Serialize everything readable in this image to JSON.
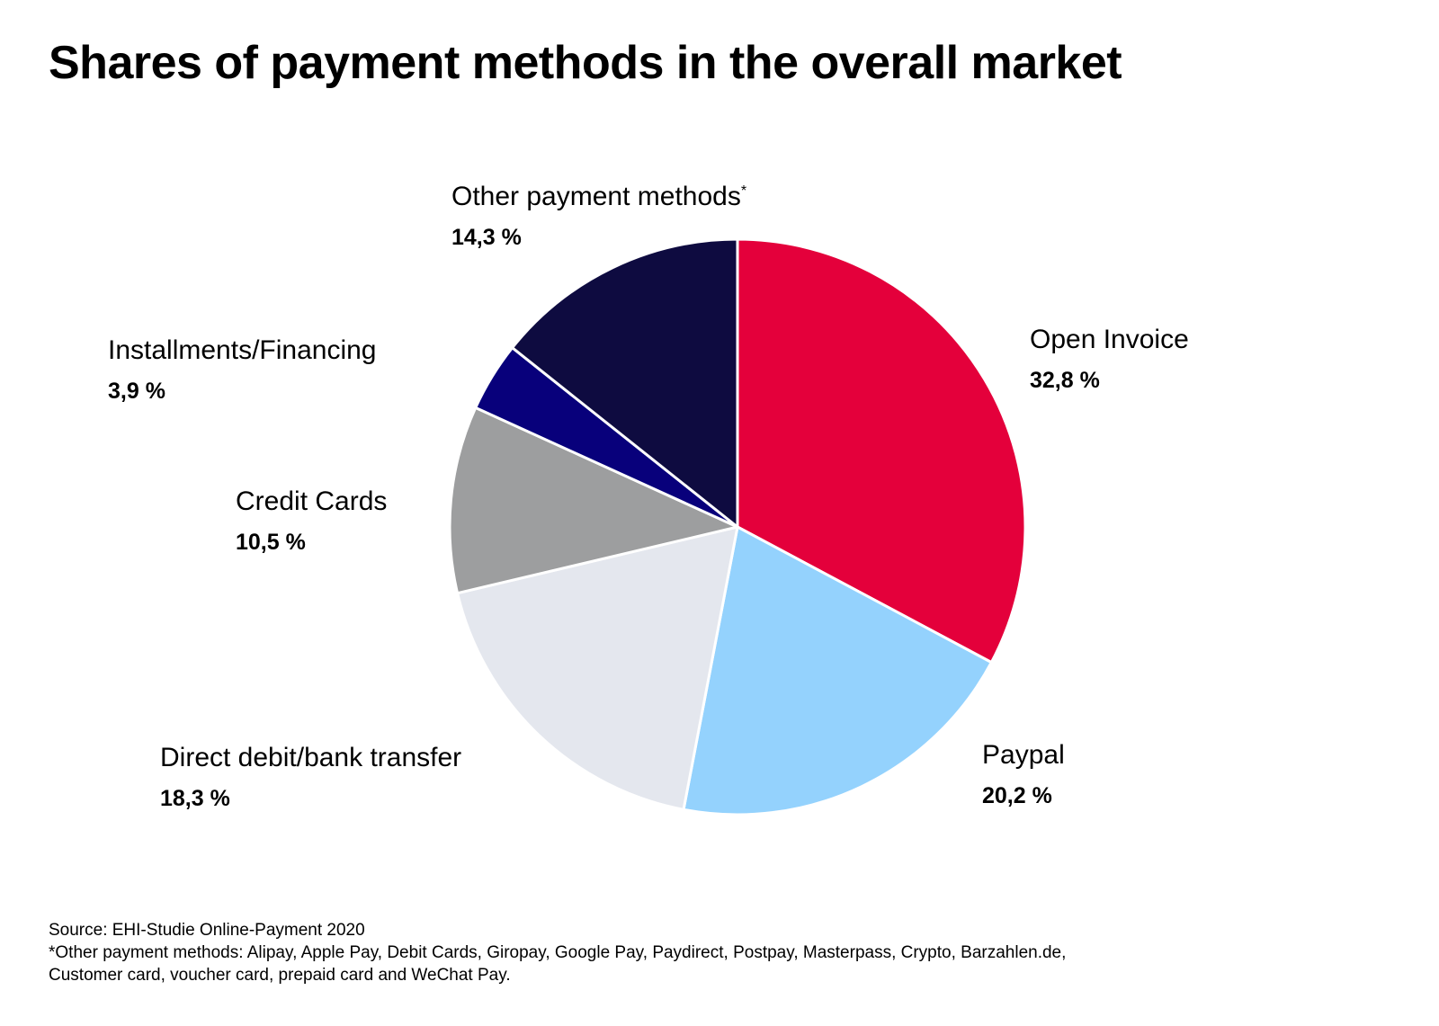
{
  "chart_data": {
    "type": "pie",
    "title": "Shares of payment methods in the overall market",
    "slices": [
      {
        "label": "Open Invoice",
        "value": 32.8,
        "display": "32,8 %",
        "color": "#e4003b"
      },
      {
        "label": "Paypal",
        "value": 20.2,
        "display": "20,2 %",
        "color": "#94d2fd"
      },
      {
        "label": "Direct debit/bank transfer",
        "value": 18.3,
        "display": "18,3 %",
        "color": "#e4e7ee"
      },
      {
        "label": "Credit Cards",
        "value": 10.5,
        "display": "10,5 %",
        "color": "#9d9e9f"
      },
      {
        "label": "Installments/Financing",
        "value": 3.9,
        "display": "3,9 %",
        "color": "#08007b"
      },
      {
        "label": "Other payment methods",
        "value": 14.3,
        "display": "14,3 %",
        "color": "#0e0b40",
        "footnote_mark": "*"
      }
    ],
    "start_angle": "12 o'clock",
    "direction": "clockwise",
    "legend": "none (direct labels)"
  },
  "footer": {
    "source": "Source: EHI-Studie Online-Payment 2020",
    "note_line1": "*Other payment methods: Alipay, Apple Pay, Debit Cards, Giropay, Google Pay, Paydirect, Postpay, Masterpass, Crypto, Barzahlen.de,",
    "note_line2": "Customer card, voucher card, prepaid card and WeChat Pay."
  }
}
